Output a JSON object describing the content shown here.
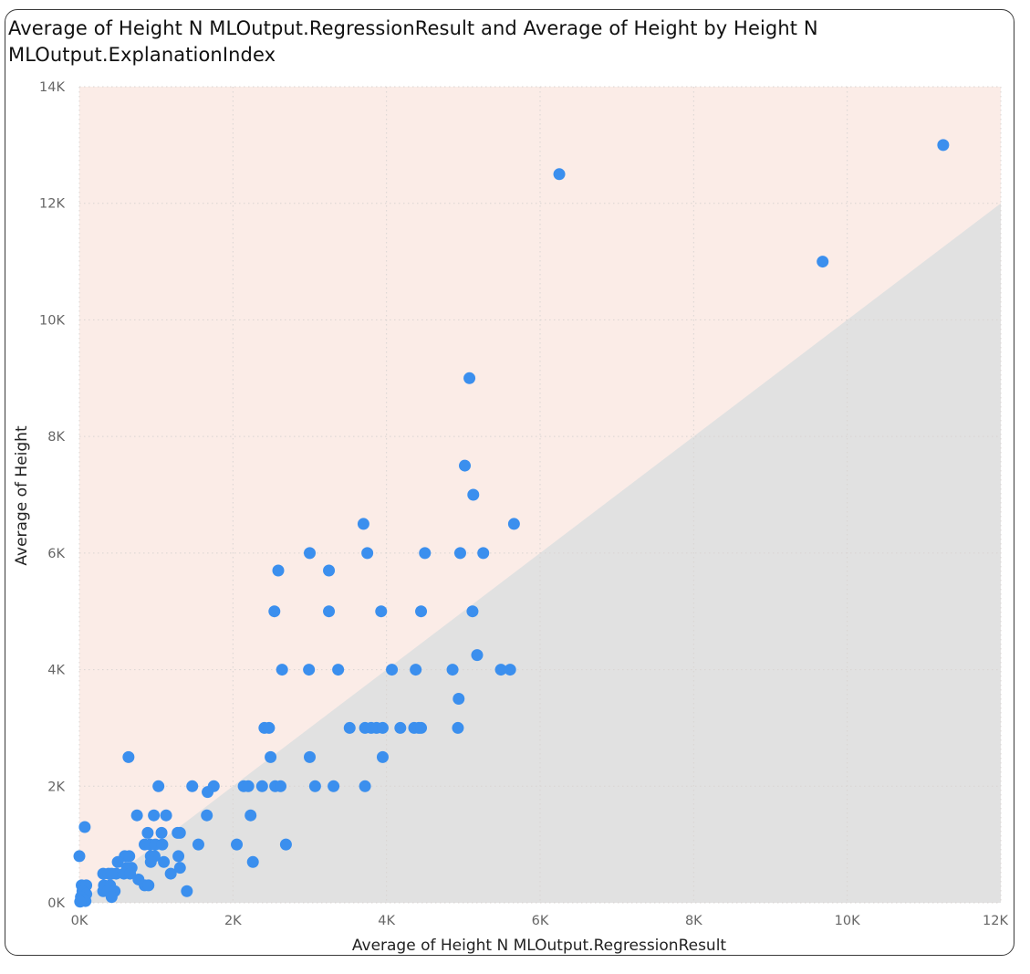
{
  "chart_data": {
    "type": "scatter",
    "title": "Average of Height N MLOutput.RegressionResult and Average of Height by Height N MLOutput.ExplanationIndex",
    "xlabel": "Average of Height N MLOutput.RegressionResult",
    "ylabel": "Average of Height",
    "xlim": [
      0,
      12000
    ],
    "ylim": [
      0,
      14000
    ],
    "x_ticks": [
      "0K",
      "2K",
      "4K",
      "6K",
      "8K",
      "10K",
      "12K"
    ],
    "y_ticks": [
      "0K",
      "2K",
      "4K",
      "6K",
      "8K",
      "10K",
      "12K",
      "14K"
    ],
    "x_tick_values": [
      0,
      2000,
      4000,
      6000,
      8000,
      10000,
      12000
    ],
    "y_tick_values": [
      0,
      2000,
      4000,
      6000,
      8000,
      10000,
      12000,
      14000
    ],
    "grid": true,
    "shading": {
      "above_line_color": "#FBECE7",
      "below_line_color": "#E1E1E1",
      "line": "y = x"
    },
    "point_color": "#3B8FEE",
    "points": [
      [
        11250,
        13000
      ],
      [
        6250,
        12500
      ],
      [
        9680,
        11000
      ],
      [
        5080,
        9000
      ],
      [
        5020,
        7500
      ],
      [
        5130,
        7000
      ],
      [
        5660,
        6500
      ],
      [
        3700,
        6500
      ],
      [
        3000,
        6000
      ],
      [
        3750,
        6000
      ],
      [
        4500,
        6000
      ],
      [
        4960,
        6000
      ],
      [
        5260,
        6000
      ],
      [
        2590,
        5700
      ],
      [
        3250,
        5700
      ],
      [
        2540,
        5000
      ],
      [
        3250,
        5000
      ],
      [
        3930,
        5000
      ],
      [
        4450,
        5000
      ],
      [
        5120,
        5000
      ],
      [
        5180,
        4250
      ],
      [
        2640,
        4000
      ],
      [
        2990,
        4000
      ],
      [
        3370,
        4000
      ],
      [
        4070,
        4000
      ],
      [
        4380,
        4000
      ],
      [
        4860,
        4000
      ],
      [
        5490,
        4000
      ],
      [
        5610,
        4000
      ],
      [
        4940,
        3500
      ],
      [
        2410,
        3000
      ],
      [
        2470,
        3000
      ],
      [
        3520,
        3000
      ],
      [
        3720,
        3000
      ],
      [
        3800,
        3000
      ],
      [
        3870,
        3000
      ],
      [
        3950,
        3000
      ],
      [
        4180,
        3000
      ],
      [
        4360,
        3000
      ],
      [
        4420,
        3000
      ],
      [
        4450,
        3000
      ],
      [
        4930,
        3000
      ],
      [
        640,
        2500
      ],
      [
        2490,
        2500
      ],
      [
        3000,
        2500
      ],
      [
        3950,
        2500
      ],
      [
        1030,
        2000
      ],
      [
        1470,
        2000
      ],
      [
        1750,
        2000
      ],
      [
        2140,
        2000
      ],
      [
        2200,
        2000
      ],
      [
        2380,
        2000
      ],
      [
        2550,
        2000
      ],
      [
        2620,
        2000
      ],
      [
        3070,
        2000
      ],
      [
        3310,
        2000
      ],
      [
        3720,
        2000
      ],
      [
        1670,
        1900
      ],
      [
        750,
        1500
      ],
      [
        970,
        1500
      ],
      [
        1130,
        1500
      ],
      [
        1660,
        1500
      ],
      [
        2230,
        1500
      ],
      [
        70,
        1300
      ],
      [
        890,
        1200
      ],
      [
        1070,
        1200
      ],
      [
        1280,
        1200
      ],
      [
        1310,
        1200
      ],
      [
        850,
        1000
      ],
      [
        920,
        1000
      ],
      [
        990,
        1000
      ],
      [
        1080,
        1000
      ],
      [
        1550,
        1000
      ],
      [
        2050,
        1000
      ],
      [
        2690,
        1000
      ],
      [
        0,
        800
      ],
      [
        590,
        800
      ],
      [
        650,
        800
      ],
      [
        930,
        800
      ],
      [
        980,
        800
      ],
      [
        1290,
        800
      ],
      [
        500,
        700
      ],
      [
        930,
        700
      ],
      [
        1100,
        700
      ],
      [
        2260,
        700
      ],
      [
        620,
        600
      ],
      [
        680,
        600
      ],
      [
        1310,
        600
      ],
      [
        480,
        500
      ],
      [
        580,
        500
      ],
      [
        660,
        500
      ],
      [
        1190,
        500
      ],
      [
        310,
        500
      ],
      [
        380,
        500
      ],
      [
        420,
        500
      ],
      [
        770,
        400
      ],
      [
        320,
        300
      ],
      [
        400,
        300
      ],
      [
        850,
        300
      ],
      [
        900,
        300
      ],
      [
        30,
        300
      ],
      [
        90,
        300
      ],
      [
        310,
        200
      ],
      [
        370,
        200
      ],
      [
        460,
        200
      ],
      [
        1400,
        200
      ],
      [
        40,
        200
      ],
      [
        90,
        150
      ],
      [
        20,
        100
      ],
      [
        420,
        100
      ],
      [
        50,
        50
      ],
      [
        80,
        30
      ],
      [
        10,
        20
      ]
    ]
  }
}
